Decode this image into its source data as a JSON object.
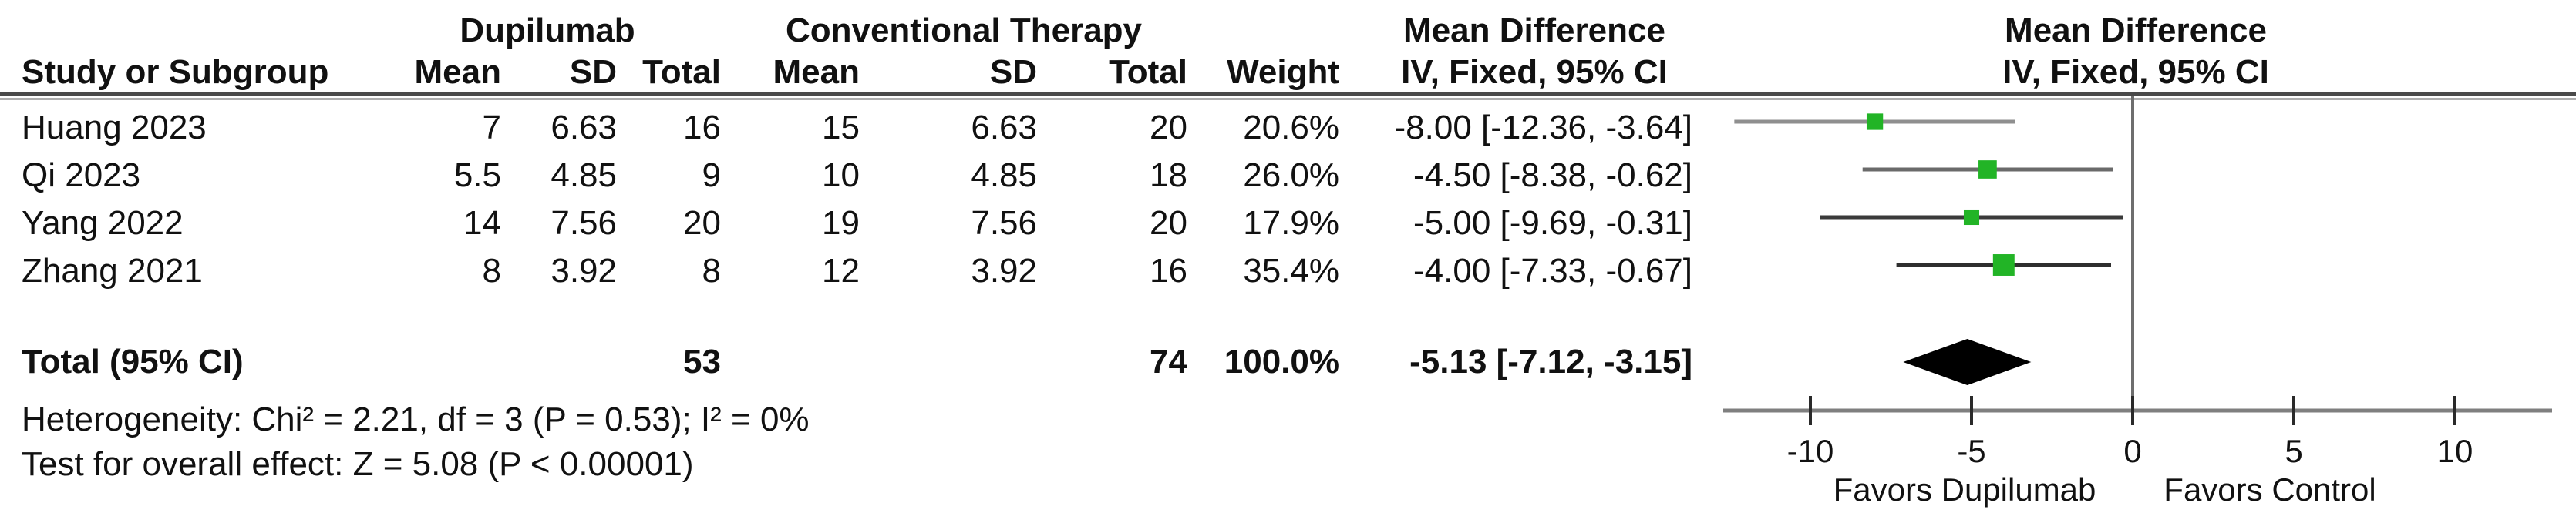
{
  "group_headers": {
    "dupilumab": "Dupilumab",
    "conventional": "Conventional Therapy",
    "mean_difference_text": "Mean Difference",
    "mean_difference_plot": "Mean Difference"
  },
  "column_headers": {
    "study": "Study or Subgroup",
    "mean": "Mean",
    "sd": "SD",
    "total": "Total",
    "weight": "Weight",
    "iv_fixed_text": "IV, Fixed, 95% CI",
    "iv_fixed_plot": "IV, Fixed, 95% CI"
  },
  "chart_data": {
    "type": "forest",
    "effect_label": "Mean Difference",
    "method_label": "IV, Fixed, 95% CI",
    "studies": [
      {
        "study": "Huang 2023",
        "dup_mean": "7",
        "dup_sd": "6.63",
        "dup_total": "16",
        "conv_mean": "15",
        "conv_sd": "6.63",
        "conv_total": "20",
        "weight": "20.6%",
        "weight_pct": 20.6,
        "md": -8.0,
        "ci_low": -12.36,
        "ci_high": -3.64,
        "ci_label": "-8.00 [-12.36, -3.64]"
      },
      {
        "study": "Qi 2023",
        "dup_mean": "5.5",
        "dup_sd": "4.85",
        "dup_total": "9",
        "conv_mean": "10",
        "conv_sd": "4.85",
        "conv_total": "18",
        "weight": "26.0%",
        "weight_pct": 26.0,
        "md": -4.5,
        "ci_low": -8.38,
        "ci_high": -0.62,
        "ci_label": "-4.50 [-8.38, -0.62]"
      },
      {
        "study": "Yang 2022",
        "dup_mean": "14",
        "dup_sd": "7.56",
        "dup_total": "20",
        "conv_mean": "19",
        "conv_sd": "7.56",
        "conv_total": "20",
        "weight": "17.9%",
        "weight_pct": 17.9,
        "md": -5.0,
        "ci_low": -9.69,
        "ci_high": -0.31,
        "ci_label": "-5.00 [-9.69, -0.31]"
      },
      {
        "study": "Zhang 2021",
        "dup_mean": "8",
        "dup_sd": "3.92",
        "dup_total": "8",
        "conv_mean": "12",
        "conv_sd": "3.92",
        "conv_total": "16",
        "weight": "35.4%",
        "weight_pct": 35.4,
        "md": -4.0,
        "ci_low": -7.33,
        "ci_high": -0.67,
        "ci_label": "-4.00 [-7.33, -0.67]"
      }
    ],
    "total": {
      "label": "Total (95% CI)",
      "dup_total": "53",
      "conv_total": "74",
      "weight": "100.0%",
      "md": -5.13,
      "ci_low": -7.12,
      "ci_high": -3.15,
      "ci_label": "-5.13 [-7.12, -3.15]"
    },
    "axis": {
      "ticks": [
        -10,
        -5,
        0,
        5,
        10
      ],
      "xlim": [
        -12.8,
        13.0
      ],
      "zero": 0
    },
    "favors": {
      "left": "Favors Dupilumab",
      "right": "Favors Control"
    },
    "colors": {
      "square": "#22b426",
      "diamond": "#000000",
      "ci_lines": [
        "#8f8f8f",
        "#6a6a6a",
        "#3a3a3a",
        "#2e2e2e"
      ],
      "axis": "#7f7f7f",
      "zero_line": "#6e6e6e",
      "tick": "#2a2a2a"
    }
  },
  "footnotes": {
    "heterogeneity": "Heterogeneity: Chi² = 2.21, df = 3 (P = 0.53); I² = 0%",
    "overall_effect": "Test for overall effect: Z = 5.08 (P < 0.00001)"
  }
}
